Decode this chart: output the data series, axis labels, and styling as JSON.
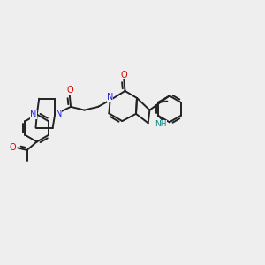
{
  "bg_color": "#EEEEEE",
  "bond_color": "#222222",
  "bond_lw": 1.4,
  "N_color": "#2222DD",
  "O_color": "#DD0000",
  "NH_color": "#008888",
  "figsize": [
    3.0,
    3.0
  ],
  "dpi": 100,
  "xlim": [
    0,
    12
  ],
  "ylim": [
    0,
    10
  ]
}
